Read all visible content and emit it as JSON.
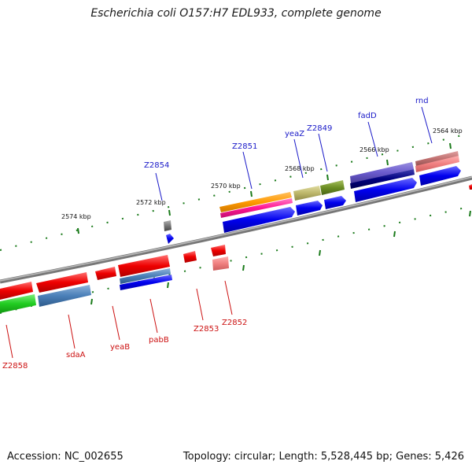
{
  "title": "Escherichia coli O157:H7 EDL933, complete genome",
  "footer": {
    "accession": "Accession: NC_002655",
    "summary": "Topology: circular; Length: 5,528,445 bp; Genes: 5,426"
  },
  "scale_labels": [
    "2574 kbp",
    "2572 kbp",
    "2570 kbp",
    "2568 kbp",
    "2566 kbp",
    "2564 kbp"
  ],
  "forward_genes": [
    "Z2854",
    "Z2851",
    "yeaZ",
    "Z2849",
    "fadD",
    "rnd"
  ],
  "reverse_genes": [
    "Z2858",
    "sdaA",
    "yeaB",
    "pabB",
    "Z2853",
    "Z2852"
  ],
  "colors": {
    "backbone": "#888888",
    "tick": "#1a7a1a",
    "forward_label": "#1919c8",
    "reverse_label": "#cc1111",
    "cds_forward": "#0000ee",
    "cds_reverse": "#ee0000"
  }
}
